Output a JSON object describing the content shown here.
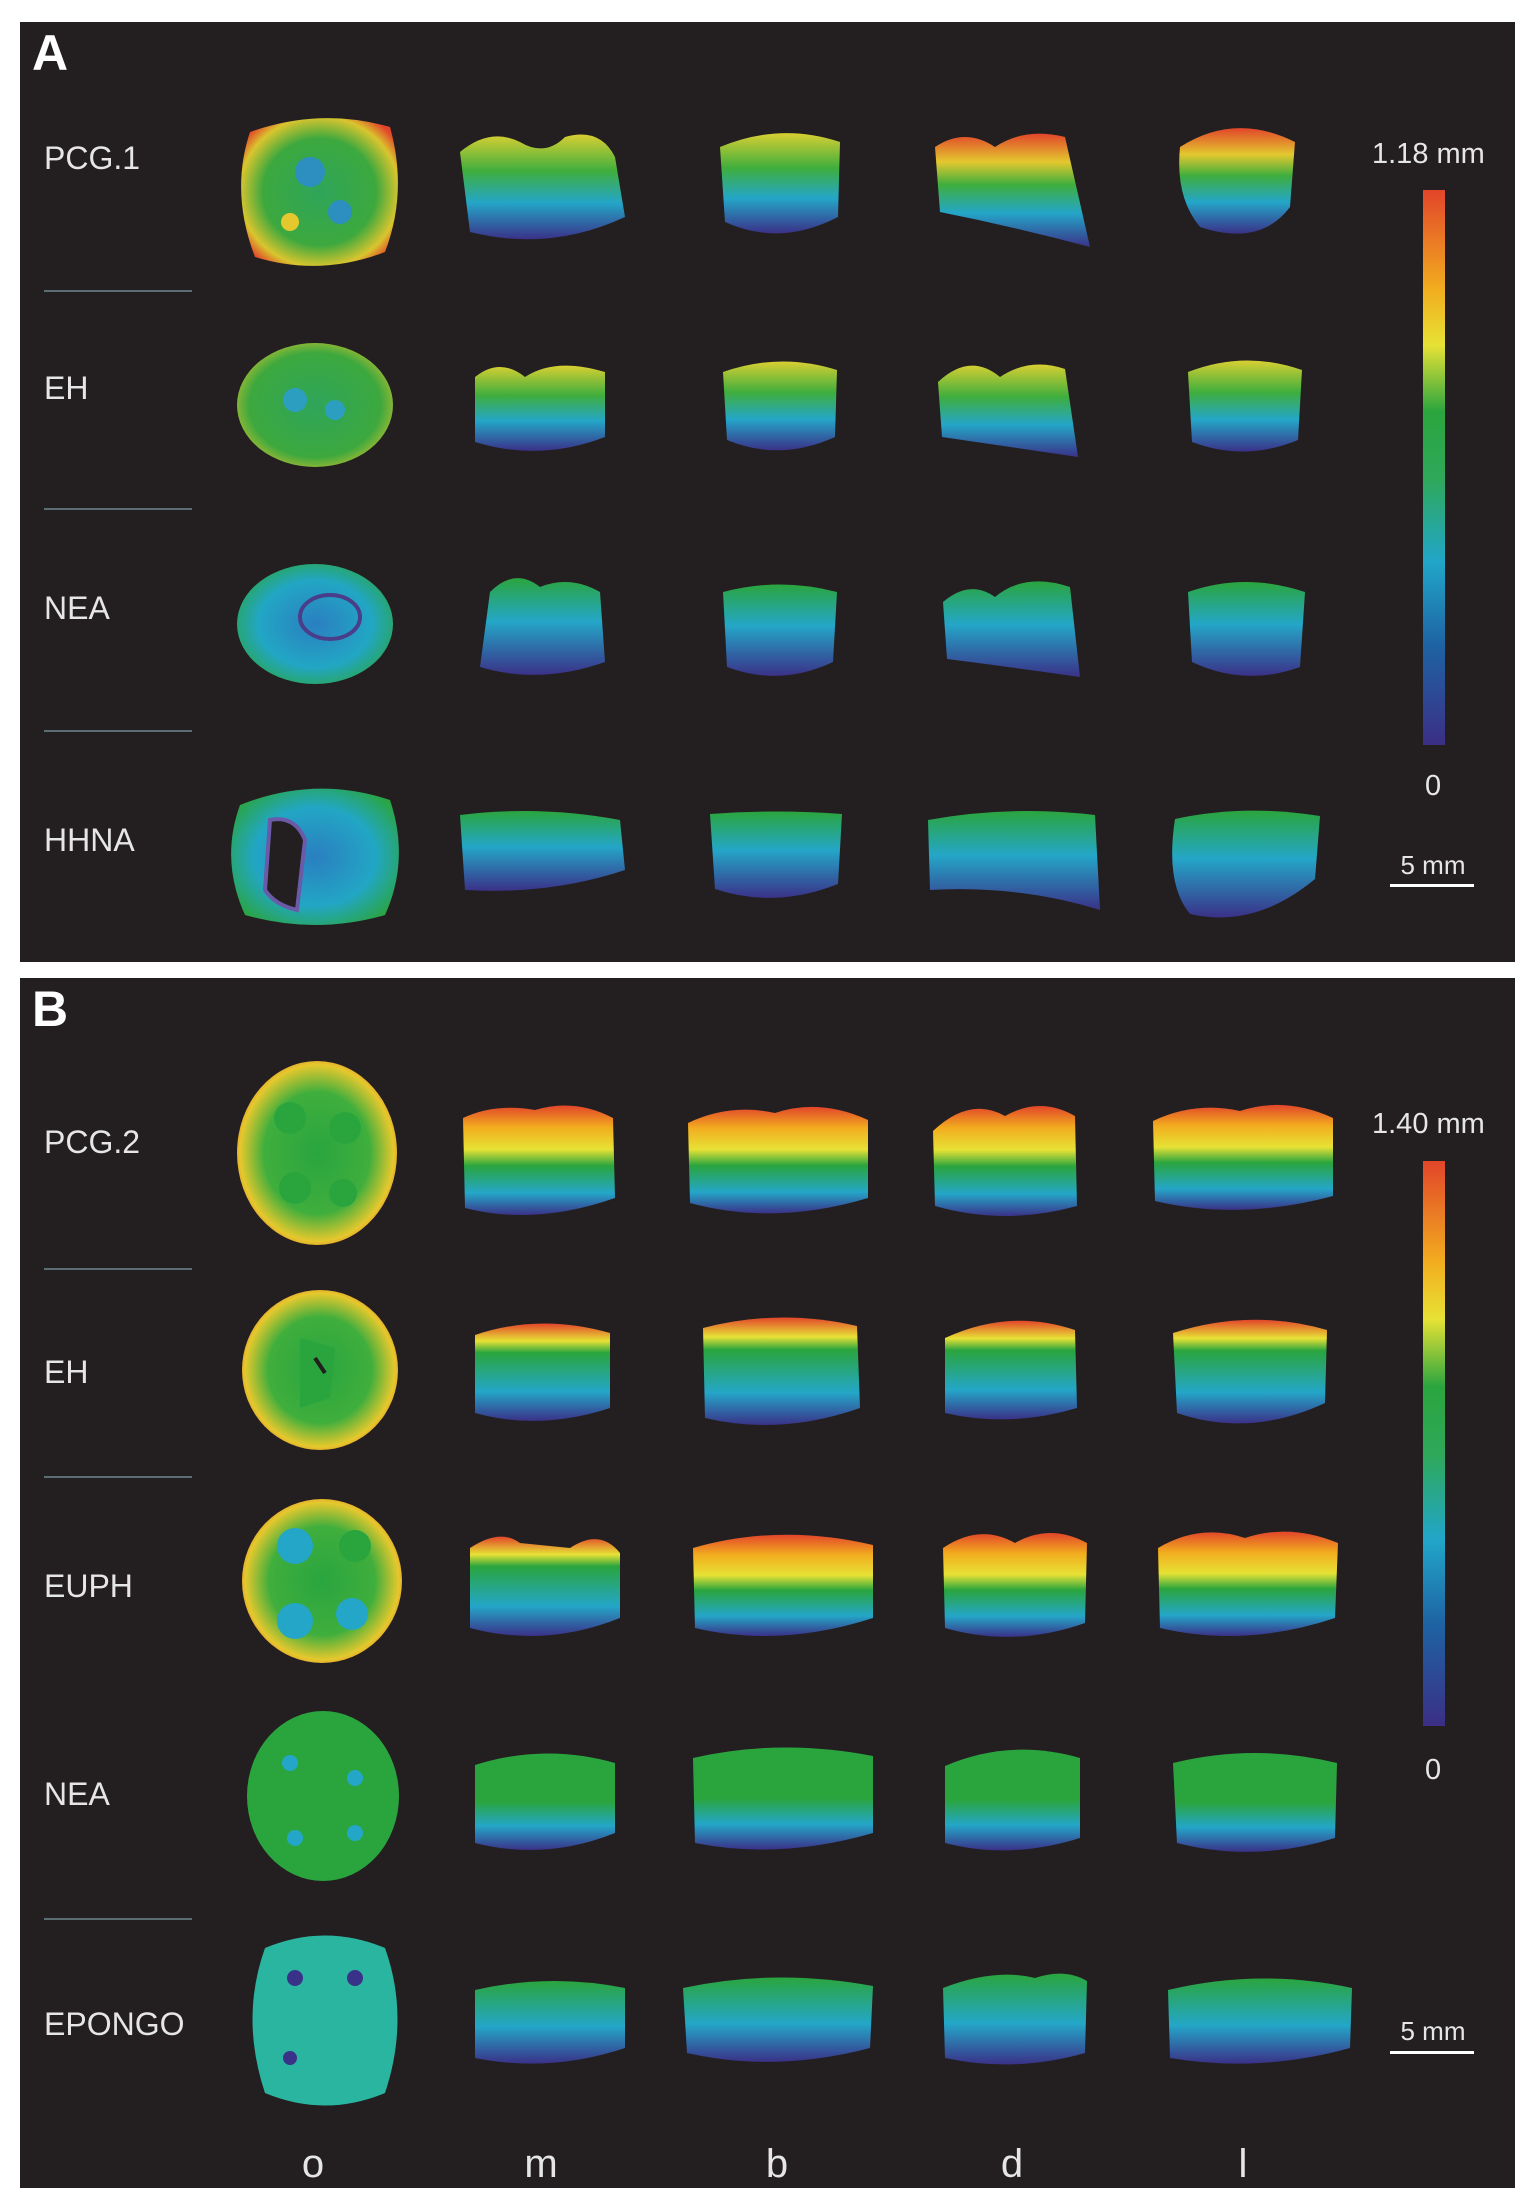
{
  "panel_a": {
    "letter": "A",
    "rows": [
      {
        "label": "PCG.1"
      },
      {
        "label": "EH"
      },
      {
        "label": "NEA"
      },
      {
        "label": "HHNA"
      }
    ],
    "legend": {
      "max": "1.18 mm",
      "min": "0"
    },
    "scale_bar": "5 mm"
  },
  "panel_b": {
    "letter": "B",
    "rows": [
      {
        "label": "PCG.2"
      },
      {
        "label": "EH"
      },
      {
        "label": "EUPH"
      },
      {
        "label": "NEA"
      },
      {
        "label": "EPONGO"
      }
    ],
    "legend": {
      "max": "1.40 mm",
      "min": "0"
    },
    "scale_bar": "5 mm",
    "view_labels": [
      "o",
      "m",
      "b",
      "d",
      "l"
    ]
  },
  "colors": {
    "background": "#231f20",
    "map_high": "#e2452a",
    "map_mid": "#2aa53e",
    "map_low": "#3b2f86"
  }
}
